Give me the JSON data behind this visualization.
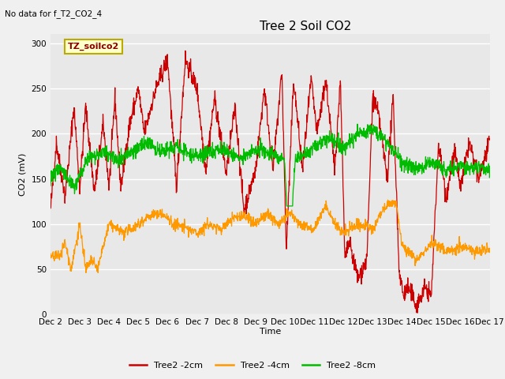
{
  "title": "Tree 2 Soil CO2",
  "no_data_label": "No data for f_T2_CO2_4",
  "ylabel": "CO2 (mV)",
  "xlabel": "Time",
  "legend_box_label": "TZ_soilco2",
  "xlim_days": [
    2,
    17
  ],
  "ylim": [
    0,
    310
  ],
  "yticks": [
    0,
    50,
    100,
    150,
    200,
    250,
    300
  ],
  "xtick_labels": [
    "Dec 2",
    "Dec 3",
    "Dec 4",
    "Dec 5",
    "Dec 6",
    "Dec 7",
    "Dec 8",
    "Dec 9",
    "Dec 10",
    "Dec 11",
    "Dec 12",
    "Dec 13",
    "Dec 14",
    "Dec 15",
    "Dec 16",
    "Dec 17"
  ],
  "line_colors": {
    "2cm": "#cc0000",
    "4cm": "#ff9900",
    "8cm": "#00bb00"
  },
  "legend_entries": [
    "Tree2 -2cm",
    "Tree2 -4cm",
    "Tree2 -8cm"
  ],
  "plot_bg": "#e8e8e8",
  "fig_bg": "#f0f0f0",
  "grid_color": "#ffffff",
  "legend_box_bg": "#ffffcc",
  "legend_box_edge": "#bbaa00",
  "title_fontsize": 11,
  "label_fontsize": 8,
  "tick_fontsize": 7.5,
  "legend_fontsize": 8
}
